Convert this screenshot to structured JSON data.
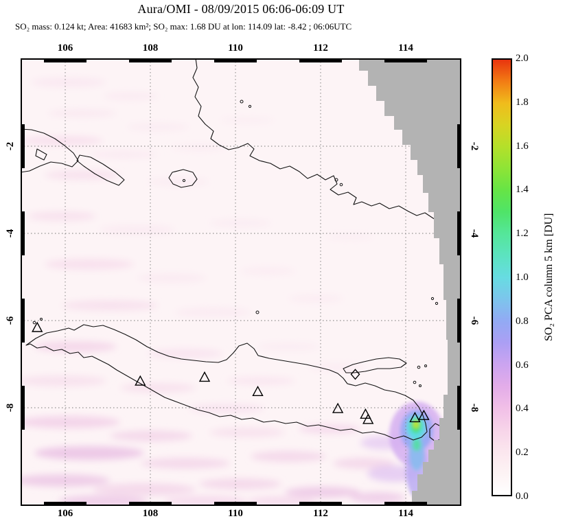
{
  "header": {
    "title": "Aura/OMI - 08/09/2015 06:06-06:09 UT",
    "subtitle": "SO₂ mass: 0.124 kt; Area: 41683 km²; SO₂ max: 1.68 DU at lon: 114.09 lat: -8.42 ; 06:06UTC"
  },
  "axes": {
    "lon_labels": [
      "106",
      "108",
      "110",
      "112",
      "114"
    ],
    "lat_labels": [
      "-2",
      "-4",
      "-6",
      "-8"
    ]
  },
  "colorbar": {
    "title": "SO₂ PCA column 5 km [DU]",
    "unit": "DU",
    "min": 0.0,
    "max": 2.0,
    "ticks": [
      "2.0",
      "1.8",
      "1.6",
      "1.4",
      "1.2",
      "1.0",
      "0.8",
      "0.6",
      "0.4",
      "0.2",
      "0.0"
    ],
    "stops": [
      {
        "value": 0.0,
        "color": "#ffffff"
      },
      {
        "value": 0.1,
        "color": "#fdf3f4"
      },
      {
        "value": 0.2,
        "color": "#fbe6ee"
      },
      {
        "value": 0.3,
        "color": "#f7d4e9"
      },
      {
        "value": 0.4,
        "color": "#f1bfe7"
      },
      {
        "value": 0.5,
        "color": "#e3ace9"
      },
      {
        "value": 0.6,
        "color": "#cba4f0"
      },
      {
        "value": 0.7,
        "color": "#ab9ff4"
      },
      {
        "value": 0.8,
        "color": "#92aaf4"
      },
      {
        "value": 0.9,
        "color": "#7cc5ec"
      },
      {
        "value": 1.0,
        "color": "#67dce2"
      },
      {
        "value": 1.1,
        "color": "#5ce3c0"
      },
      {
        "value": 1.2,
        "color": "#55e69a"
      },
      {
        "value": 1.3,
        "color": "#4fe468"
      },
      {
        "value": 1.4,
        "color": "#66e446"
      },
      {
        "value": 1.5,
        "color": "#8ee436"
      },
      {
        "value": 1.6,
        "color": "#b4e02a"
      },
      {
        "value": 1.7,
        "color": "#d8d422"
      },
      {
        "value": 1.8,
        "color": "#f0bc1c"
      },
      {
        "value": 1.9,
        "color": "#f27c14"
      },
      {
        "value": 2.0,
        "color": "#e8340e"
      }
    ]
  },
  "map": {
    "extent": {
      "lon_min": 104.95,
      "lon_max": 115.3,
      "lat_min": -10.25,
      "lat_max": 0.02
    },
    "nodata_color": "#b3b3b3",
    "coastline_color": "#111111",
    "background_color": "#fdf4f6"
  },
  "chart_data": {
    "type": "heatmap",
    "instrument": "Aura/OMI",
    "date": "08/09/2015",
    "time_window_ut": "06:06-06:09",
    "quantity": "SO2 PCA column 5 km",
    "unit": "DU",
    "so2_mass_kt": 0.124,
    "area_km2": 41683,
    "so2_max_du": 1.68,
    "so2_max_lon": 114.09,
    "so2_max_lat": -8.42,
    "so2_max_time": "06:06UTC",
    "value_range_du": [
      0.0,
      2.0
    ],
    "lon_gridlines": [
      106,
      108,
      110,
      112,
      114
    ],
    "lat_gridlines": [
      -2,
      -4,
      -6,
      -8
    ],
    "plume_peak": {
      "lon": 114.09,
      "lat": -8.42,
      "value_du": 1.68
    },
    "volcano_markers": [
      {
        "lon": 105.34,
        "lat": -6.17
      },
      {
        "lon": 107.76,
        "lat": -7.4
      },
      {
        "lon": 109.27,
        "lat": -7.31
      },
      {
        "lon": 110.52,
        "lat": -7.64
      },
      {
        "lon": 112.4,
        "lat": -8.03
      },
      {
        "lon": 113.05,
        "lat": -8.16
      },
      {
        "lon": 113.11,
        "lat": -8.28
      },
      {
        "lon": 114.21,
        "lat": -8.24
      },
      {
        "lon": 114.42,
        "lat": -8.19
      }
    ],
    "station_marker": {
      "lon": 112.81,
      "lat": -7.23,
      "shape": "diamond"
    }
  }
}
